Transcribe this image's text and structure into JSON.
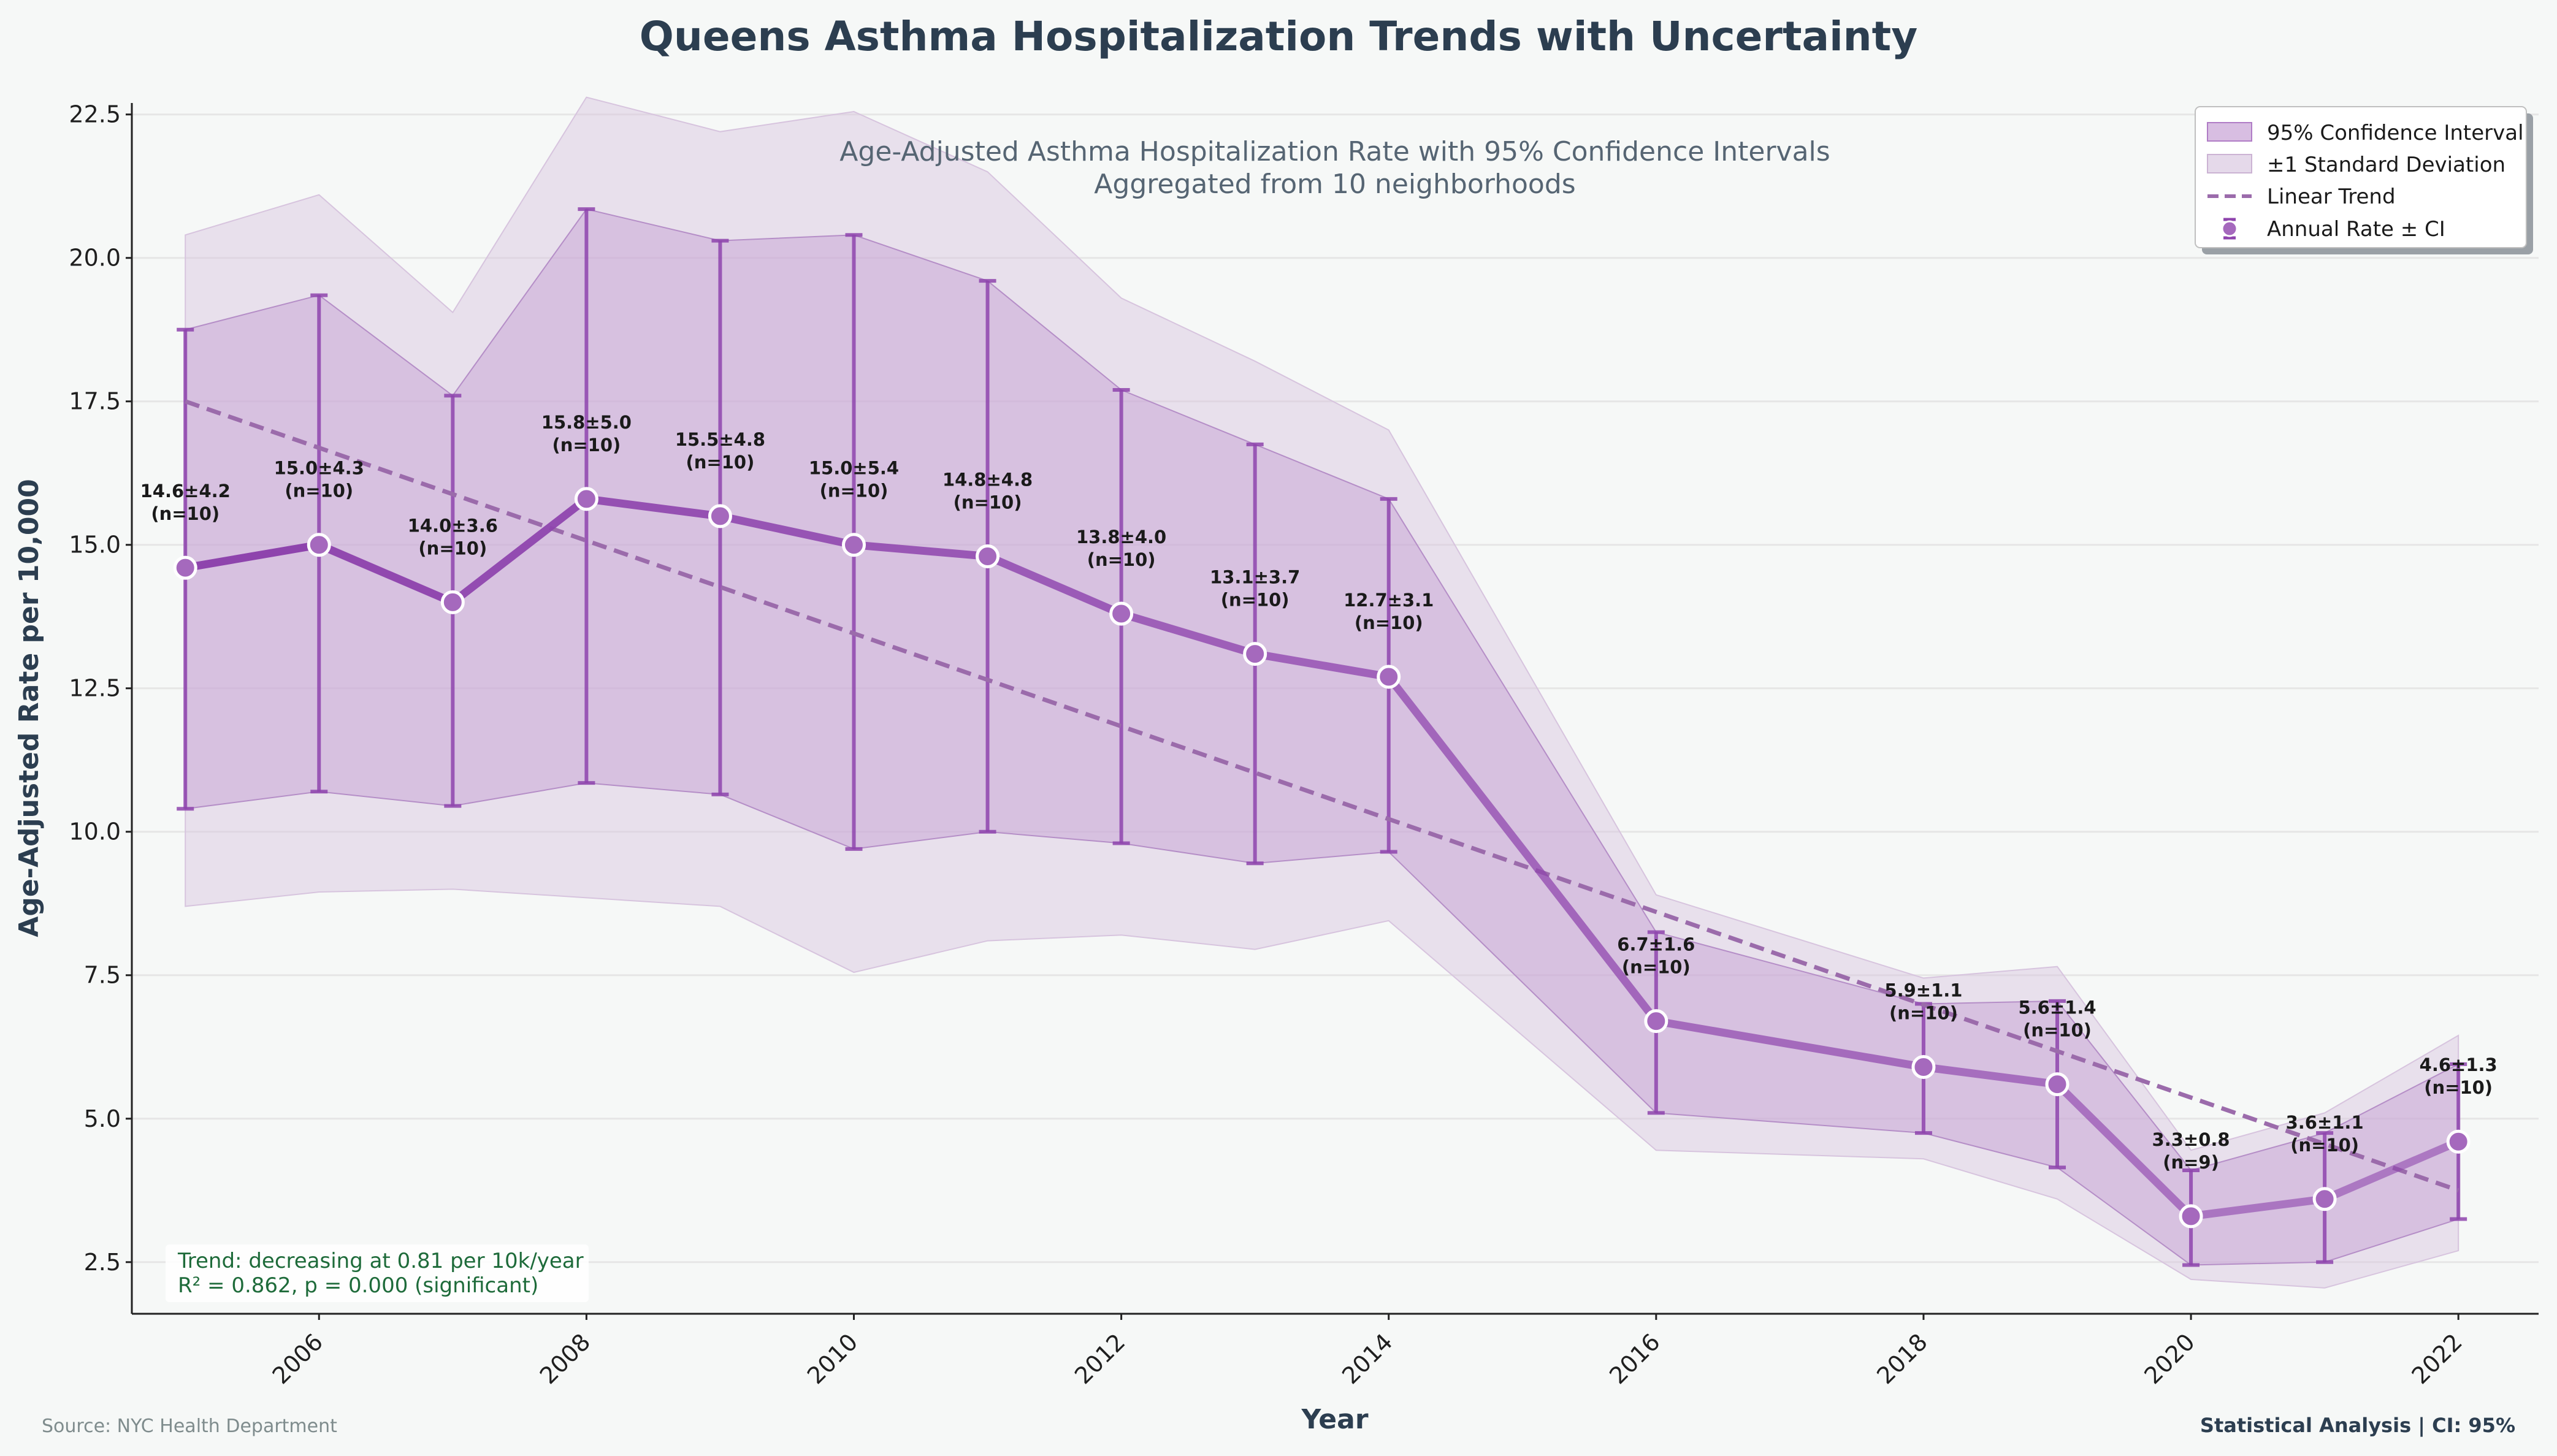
{
  "chart_data": {
    "type": "line",
    "title": "Queens Asthma Hospitalization Trends with Uncertainty",
    "subtitle_line1": "Age-Adjusted Asthma Hospitalization Rate with 95% Confidence Intervals",
    "subtitle_line2": "Aggregated from 10 neighborhoods",
    "xlabel": "Year",
    "ylabel": "Age-Adjusted Rate per 10,000",
    "xlim": [
      2004.6,
      2022.6
    ],
    "ylim": [
      1.6,
      22.7
    ],
    "xticks": [
      2006,
      2008,
      2010,
      2012,
      2014,
      2016,
      2018,
      2020,
      2022
    ],
    "yticks": [
      2.5,
      5.0,
      7.5,
      10.0,
      12.5,
      15.0,
      17.5,
      20.0,
      22.5
    ],
    "ytick_labels": [
      "2.5",
      "5.0",
      "7.5",
      "10.0",
      "12.5",
      "15.0",
      "17.5",
      "20.0",
      "22.5"
    ],
    "grid": "horizontal",
    "legend_position": "top-right",
    "legend": {
      "ci": "95% Confidence Interval",
      "sd": "±1 Standard Deviation",
      "trend": "Linear Trend",
      "points": "Annual Rate ± CI"
    },
    "colors": {
      "line": "#8e44ad",
      "ci_fill": "#c39bd3",
      "sd_fill": "#d7c4de",
      "trend": "#9b6bab",
      "point_fill": "#a569bd",
      "background": "#f6f8f7"
    },
    "x": [
      2005,
      2006,
      2007,
      2008,
      2009,
      2010,
      2011,
      2012,
      2013,
      2014,
      2016,
      2018,
      2019,
      2020,
      2021,
      2022
    ],
    "mean": [
      14.6,
      15.0,
      14.0,
      15.8,
      15.5,
      15.0,
      14.8,
      13.8,
      13.1,
      12.7,
      6.7,
      5.9,
      5.6,
      3.3,
      3.6,
      4.6
    ],
    "sd": [
      4.2,
      4.3,
      3.6,
      5.0,
      4.8,
      5.4,
      4.8,
      4.0,
      3.7,
      3.1,
      1.6,
      1.1,
      1.4,
      0.8,
      1.1,
      1.3
    ],
    "n": [
      10,
      10,
      10,
      10,
      10,
      10,
      10,
      10,
      10,
      10,
      10,
      10,
      10,
      9,
      10,
      10
    ],
    "ci_lower": [
      10.4,
      10.7,
      10.45,
      10.85,
      10.65,
      9.7,
      10.0,
      9.8,
      9.45,
      9.65,
      5.1,
      4.75,
      4.15,
      2.45,
      2.5,
      3.25
    ],
    "ci_upper": [
      18.75,
      19.35,
      17.6,
      20.85,
      20.3,
      20.4,
      19.6,
      17.7,
      16.75,
      15.8,
      8.25,
      7.0,
      7.05,
      4.1,
      4.75,
      5.95
    ],
    "sd_lower": [
      8.7,
      8.95,
      9.0,
      8.85,
      8.7,
      7.55,
      8.1,
      8.2,
      7.95,
      8.45,
      4.45,
      4.3,
      3.6,
      2.2,
      2.05,
      2.7
    ],
    "sd_upper": [
      20.4,
      21.1,
      19.05,
      22.8,
      22.2,
      22.55,
      21.5,
      19.3,
      18.2,
      17.0,
      8.9,
      7.45,
      7.65,
      4.45,
      5.1,
      6.45
    ],
    "point_labels": [
      "14.6±4.2",
      "15.0±4.3",
      "14.0±3.6",
      "15.8±5.0",
      "15.5±4.8",
      "15.0±5.4",
      "14.8±4.8",
      "13.8±4.0",
      "13.1±3.7",
      "12.7±3.1",
      "6.7±1.6",
      "5.9±1.1",
      "5.6±1.4",
      "3.3±0.8",
      "3.6±1.1",
      "4.6±1.3"
    ],
    "n_labels": [
      "(n=10)",
      "(n=10)",
      "(n=10)",
      "(n=10)",
      "(n=10)",
      "(n=10)",
      "(n=10)",
      "(n=10)",
      "(n=10)",
      "(n=10)",
      "(n=10)",
      "(n=10)",
      "(n=10)",
      "(n=9)",
      "(n=10)",
      "(n=10)"
    ],
    "trend_line": {
      "x": [
        2005,
        2022
      ],
      "y": [
        17.5,
        3.75
      ]
    },
    "annotation_line1": "Trend: decreasing at 0.81 per 10k/year",
    "annotation_line2": "R² = 0.862, p = 0.000 (significant)",
    "source": "Source: NYC Health Department",
    "stat_note": "Statistical Analysis | CI: 95%"
  }
}
